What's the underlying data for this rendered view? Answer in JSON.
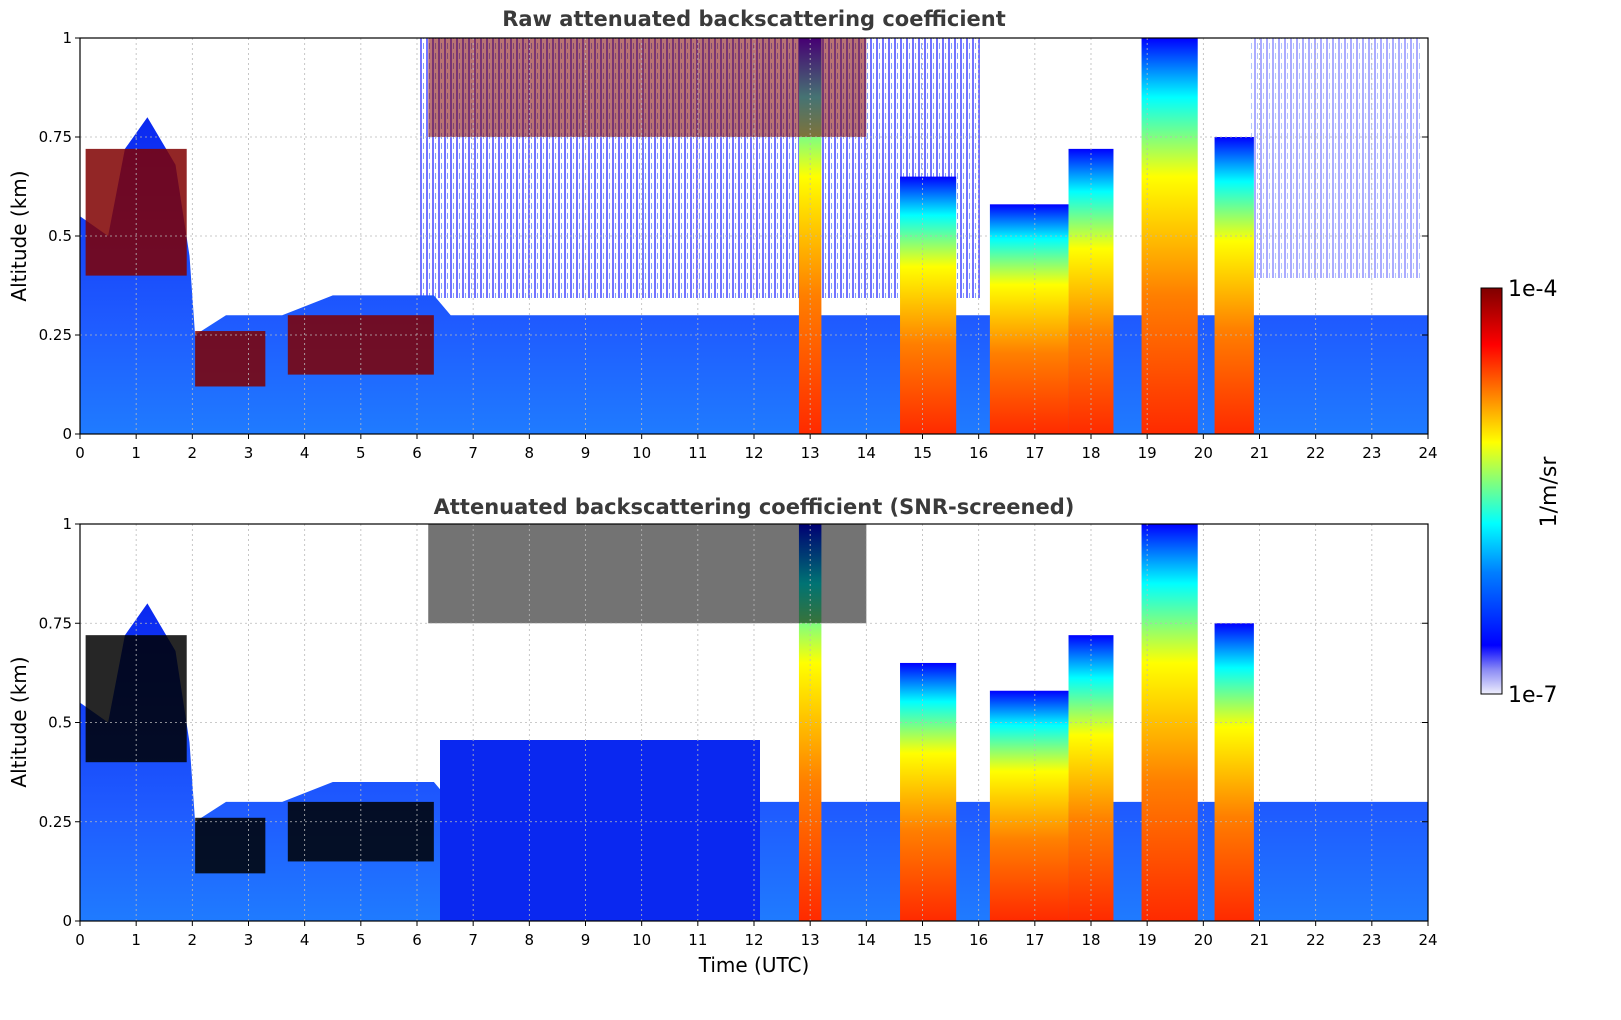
{
  "colors": {
    "jet": [
      "#00007f",
      "#0000ff",
      "#007fff",
      "#00ffff",
      "#7fff7f",
      "#ffff00",
      "#ff7f00",
      "#ff0000",
      "#7f0000"
    ],
    "low_end": "#eeeefc",
    "screened_saturation": "#000000",
    "grid": "#b9b9b9",
    "title": "#3a3a3a"
  },
  "chart_data": [
    {
      "type": "heatmap",
      "title": "Raw attenuated backscattering coefficient",
      "xlabel": "",
      "ylabel": "Altitude (km)",
      "xlim": [
        0,
        24
      ],
      "ylim": [
        0,
        1
      ],
      "xticks": [
        "0",
        "1",
        "2",
        "3",
        "4",
        "5",
        "6",
        "7",
        "8",
        "9",
        "10",
        "11",
        "12",
        "13",
        "14",
        "15",
        "16",
        "17",
        "18",
        "19",
        "20",
        "21",
        "22",
        "23",
        "24"
      ],
      "yticks": [
        "0",
        "0.25",
        "0.5",
        "0.75",
        "1"
      ],
      "grid": true,
      "screened": false
    },
    {
      "type": "heatmap",
      "title": "Attenuated backscattering coefficient (SNR-screened)",
      "xlabel": "Time (UTC)",
      "ylabel": "Altitude (km)",
      "xlim": [
        0,
        24
      ],
      "ylim": [
        0,
        1
      ],
      "xticks": [
        "0",
        "1",
        "2",
        "3",
        "4",
        "5",
        "6",
        "7",
        "8",
        "9",
        "10",
        "11",
        "12",
        "13",
        "14",
        "15",
        "16",
        "17",
        "18",
        "19",
        "20",
        "21",
        "22",
        "23",
        "24"
      ],
      "yticks": [
        "0",
        "0.25",
        "0.5",
        "0.75",
        "1"
      ],
      "grid": true,
      "screened": true
    }
  ],
  "colorbar": {
    "label": "1/m/sr",
    "max_label": "1e-4",
    "min_label": "1e-7",
    "range": [
      "1e-7",
      "1e-4"
    ],
    "scale": "log"
  },
  "layers": {
    "boundary_layer": [
      [
        0,
        0.55
      ],
      [
        0.5,
        0.5
      ],
      [
        0.8,
        0.72
      ],
      [
        1.2,
        0.8
      ],
      [
        1.7,
        0.68
      ],
      [
        1.95,
        0.45
      ],
      [
        2.05,
        0.25
      ],
      [
        2.6,
        0.3
      ],
      [
        3.3,
        0.3
      ],
      [
        3.6,
        0.3
      ],
      [
        4.5,
        0.35
      ],
      [
        5.5,
        0.35
      ],
      [
        6.3,
        0.35
      ],
      [
        6.6,
        0.3
      ],
      [
        24,
        0.3
      ]
    ],
    "plumes": [
      {
        "x": [
          12.8,
          13.2
        ],
        "top": 1.0
      },
      {
        "x": [
          14.6,
          15.6
        ],
        "top": 0.65
      },
      {
        "x": [
          16.2,
          17.6
        ],
        "top": 0.58
      },
      {
        "x": [
          17.6,
          18.4
        ],
        "top": 0.72
      },
      {
        "x": [
          18.9,
          19.9
        ],
        "top": 1.0
      },
      {
        "x": [
          20.2,
          20.9
        ],
        "top": 0.75
      }
    ],
    "upper_cloud_time_range": [
      6.2,
      14.0
    ]
  }
}
